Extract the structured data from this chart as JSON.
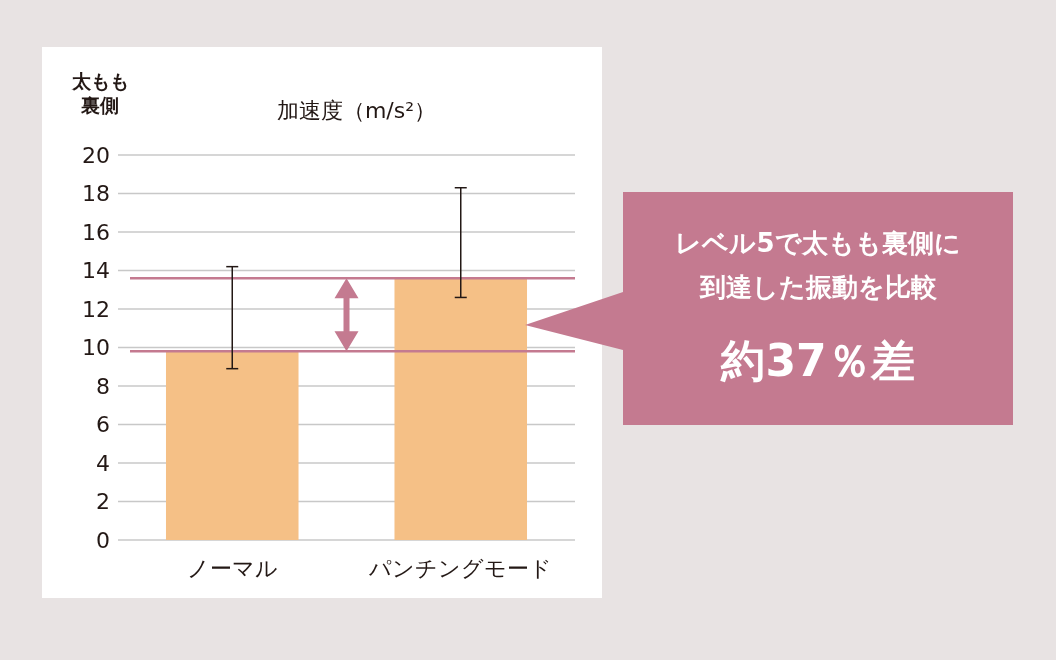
{
  "chart_data": {
    "type": "bar",
    "title": "加速度（m/s²）",
    "ylabel": "太もも裏側",
    "categories": [
      "ノーマル",
      "パンチングモード"
    ],
    "values": [
      9.8,
      13.6
    ],
    "errors": [
      [
        8.9,
        14.2
      ],
      [
        12.6,
        18.3
      ]
    ],
    "color": "#f5c086",
    "ylim": [
      0,
      20
    ],
    "yticks": [
      0,
      2,
      4,
      6,
      8,
      10,
      12,
      14,
      16,
      18,
      20
    ],
    "grid": "y",
    "ref_lines": [
      {
        "axis": "y",
        "value": 9.8,
        "color": "#c47a90"
      },
      {
        "axis": "y",
        "value": 13.6,
        "color": "#c47a90"
      }
    ],
    "annotations": [
      "レベル5で太もも裏側に到達した振動を比較",
      "約37％差"
    ]
  }
}
